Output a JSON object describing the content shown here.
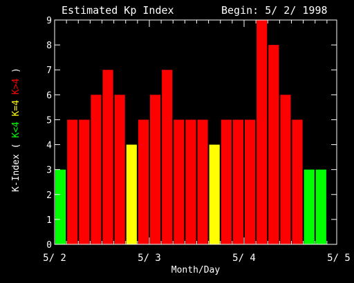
{
  "chart_data": {
    "type": "bar",
    "title": "Estimated Kp Index",
    "begin_label": "Begin: 5/ 2/ 1998",
    "xlabel": "Month/Day",
    "ylabel_parts": [
      {
        "text": "K-Index (",
        "color": "#ffffff"
      },
      {
        "text": "K<4",
        "color": "#00ff00"
      },
      {
        "text": "K=4",
        "color": "#ffff00"
      },
      {
        "text": "K>4",
        "color": "#ff0000"
      },
      {
        "text": ")",
        "color": "#ffffff"
      }
    ],
    "ylim": [
      0,
      9
    ],
    "yticks": [
      "0",
      "1",
      "2",
      "3",
      "4",
      "5",
      "6",
      "7",
      "8",
      "9"
    ],
    "xticks": [
      "5/ 2",
      "5/ 3",
      "5/ 4",
      "5/ 5"
    ],
    "bins_per_day": 8,
    "values": [
      3,
      5,
      5,
      6,
      7,
      6,
      4,
      5,
      6,
      7,
      5,
      5,
      5,
      4,
      5,
      5,
      5,
      9,
      8,
      6,
      5,
      3,
      3
    ],
    "colors": {
      "low": "#00ff00",
      "mid": "#ffff00",
      "high": "#ff0000",
      "axis": "#ffffff",
      "background": "#000000"
    }
  }
}
